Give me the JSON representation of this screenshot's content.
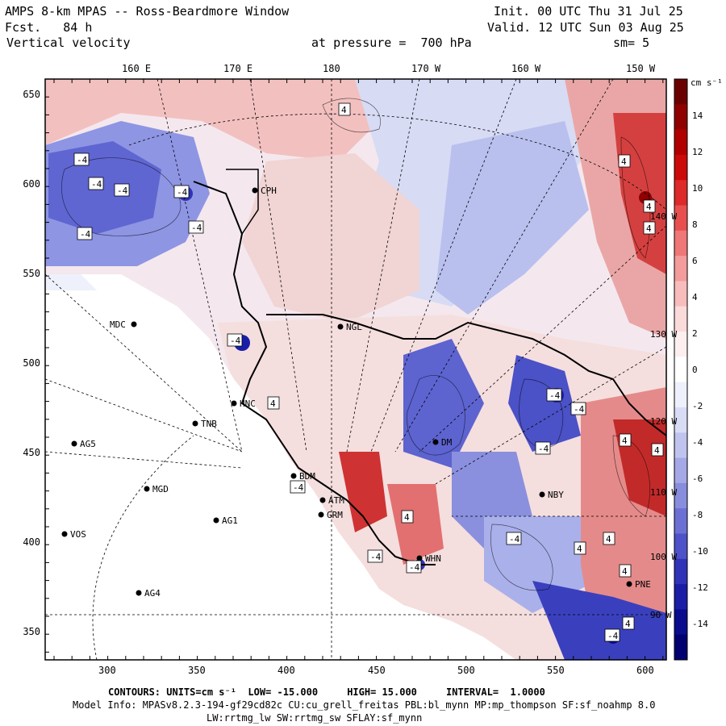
{
  "header": {
    "title": "AMPS 8-km MPAS -- Ross-Beardmore Window",
    "forecast": "Fcst.   84 h",
    "field": "Vertical velocity",
    "init": "Init. 00 UTC Thu 31 Jul 25",
    "valid": "Valid. 12 UTC Sun 03 Aug 25",
    "pressure": "at pressure =  700 hPa",
    "smoothing": "sm= 5"
  },
  "axes": {
    "top_labels": [
      "160 E",
      "170 E",
      "180",
      "170 W",
      "160 W",
      "150 W"
    ],
    "bottom_labels": [
      "300",
      "350",
      "400",
      "450",
      "500",
      "550",
      "600"
    ],
    "left_labels": [
      "650",
      "600",
      "550",
      "500",
      "450",
      "400",
      "350"
    ],
    "right_longitudes": [
      "140 W",
      "130 W",
      "120 W",
      "110 W",
      "100 W",
      "90 W"
    ]
  },
  "colorbar": {
    "units": "cm s⁻¹",
    "labels": [
      "14",
      "12",
      "10",
      "8",
      "6",
      "4",
      "2",
      "0",
      "-2",
      "-4",
      "-6",
      "-8",
      "-10",
      "-12",
      "-14"
    ],
    "colors": [
      "#6b0000",
      "#8f0000",
      "#b00000",
      "#cc0a0a",
      "#dd2a2a",
      "#e85050",
      "#ef7777",
      "#f49b9b",
      "#f8bcbc",
      "#fbdada",
      "#fdefef",
      "#ffffff",
      "#eef0fb",
      "#d9dcf5",
      "#bfc3ee",
      "#a4a8e6",
      "#888ddd",
      "#6c70d4",
      "#4e52c8",
      "#2f33b8",
      "#1a1ea6",
      "#0a0c8e",
      "#000070"
    ]
  },
  "stations": [
    "CPH",
    "MDC",
    "NGL",
    "TNB",
    "HNC",
    "AG5",
    "BDM",
    "MGD",
    "ATM",
    "GRM",
    "AG1",
    "VOS",
    "AG4",
    "DM",
    "NBY",
    "PNE",
    "WHN"
  ],
  "contour_labels": [
    "4",
    "-4"
  ],
  "footer": {
    "contours_line": "CONTOURS: UNITS=cm s⁻¹  LOW= -15.000     HIGH= 15.000     INTERVAL=  1.0000",
    "model_info": "Model Info: MPASv8.2.3-194-gf29cd82c CU:cu_grell_freitas PBL:bl_mynn MP:mp_thompson SF:sf_noahmp 8.0",
    "lw_line": "LW:rrtmg_lw SW:rrtmg_sw SFLAY:sf_mynn"
  }
}
